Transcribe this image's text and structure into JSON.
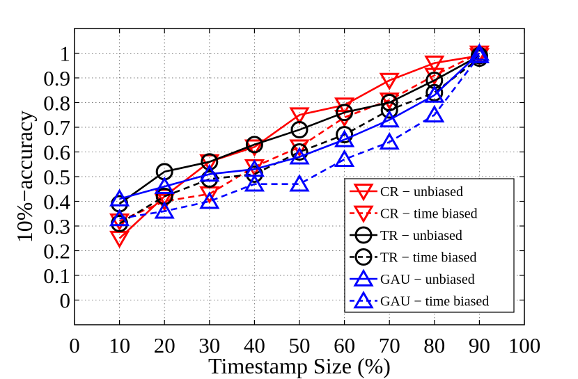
{
  "chart_data": {
    "type": "line",
    "xlabel": "Timestamp Size (%)",
    "ylabel": "10%−accuracy",
    "xlim": [
      0,
      100
    ],
    "ylim": [
      -0.1,
      1.1
    ],
    "xticks": [
      "0",
      "10",
      "20",
      "30",
      "40",
      "50",
      "60",
      "70",
      "80",
      "90",
      "100"
    ],
    "yticks": [
      "0",
      "0.1",
      "0.2",
      "0.3",
      "0.4",
      "0.5",
      "0.6",
      "0.7",
      "0.8",
      "0.9",
      "1"
    ],
    "grid": true,
    "legend_position": "lower-right",
    "x": [
      10,
      20,
      30,
      40,
      50,
      60,
      70,
      80,
      90
    ],
    "series": [
      {
        "name": "CR − unbiased",
        "color": "#ff0000",
        "marker": "triangle-down",
        "dashed": false,
        "values": [
          0.25,
          0.42,
          0.56,
          0.62,
          0.75,
          0.79,
          0.89,
          0.96,
          0.99
        ]
      },
      {
        "name": "CR − time biased",
        "color": "#ff0000",
        "marker": "triangle-down",
        "dashed": true,
        "values": [
          0.32,
          0.4,
          0.43,
          0.54,
          0.62,
          0.74,
          0.81,
          0.91,
          1.0
        ]
      },
      {
        "name": "TR − unbiased",
        "color": "#000000",
        "marker": "circle",
        "dashed": false,
        "values": [
          0.39,
          0.52,
          0.56,
          0.63,
          0.69,
          0.76,
          0.8,
          0.89,
          0.99
        ]
      },
      {
        "name": "TR − time biased",
        "color": "#000000",
        "marker": "circle",
        "dashed": true,
        "values": [
          0.31,
          0.42,
          0.49,
          0.51,
          0.6,
          0.67,
          0.77,
          0.84,
          0.98
        ]
      },
      {
        "name": "GAU − unbiased",
        "color": "#0000ff",
        "marker": "triangle-up",
        "dashed": false,
        "values": [
          0.41,
          0.46,
          0.51,
          0.53,
          0.58,
          0.65,
          0.73,
          0.83,
          1.0
        ]
      },
      {
        "name": "GAU − time biased",
        "color": "#0000ff",
        "marker": "triangle-up",
        "dashed": true,
        "values": [
          0.33,
          0.36,
          0.4,
          0.47,
          0.47,
          0.57,
          0.64,
          0.75,
          0.99
        ]
      }
    ]
  }
}
